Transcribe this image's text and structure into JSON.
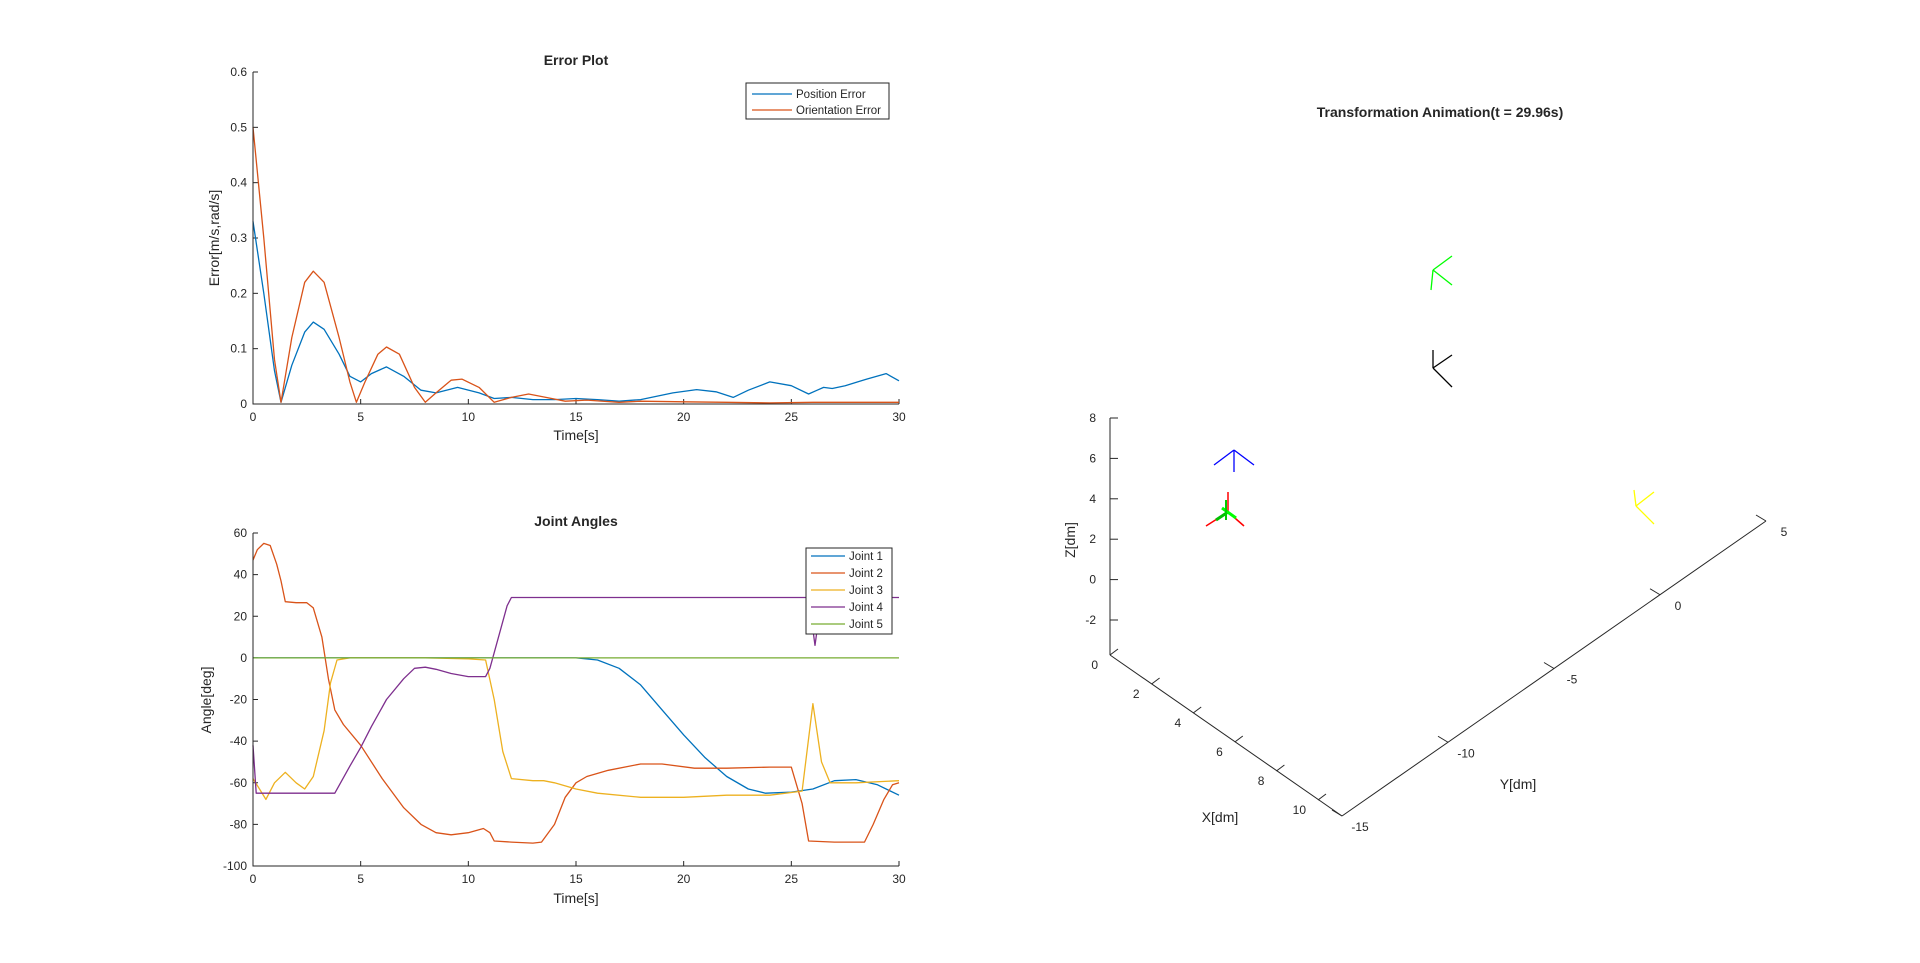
{
  "chart_data": [
    {
      "type": "line",
      "title": "Error Plot",
      "xlabel": "Time[s]",
      "ylabel": "Error[m/s,rad/s]",
      "xlim": [
        0,
        30
      ],
      "ylim": [
        0,
        0.6
      ],
      "xticks": [
        "0",
        "5",
        "10",
        "15",
        "20",
        "25",
        "30"
      ],
      "yticks": [
        "0",
        "0.1",
        "0.2",
        "0.3",
        "0.4",
        "0.5",
        "0.6"
      ],
      "legend_position": "top-right",
      "series": [
        {
          "name": "Position Error",
          "color": "#0072bd",
          "points": [
            [
              0,
              0.33
            ],
            [
              0.5,
              0.2
            ],
            [
              1,
              0.06
            ],
            [
              1.3,
              0.003
            ],
            [
              1.8,
              0.07
            ],
            [
              2.4,
              0.13
            ],
            [
              2.8,
              0.148
            ],
            [
              3.3,
              0.135
            ],
            [
              4,
              0.09
            ],
            [
              4.5,
              0.05
            ],
            [
              5,
              0.04
            ],
            [
              5.5,
              0.055
            ],
            [
              6.2,
              0.067
            ],
            [
              7,
              0.05
            ],
            [
              7.8,
              0.025
            ],
            [
              8.5,
              0.02
            ],
            [
              9.5,
              0.03
            ],
            [
              10.5,
              0.02
            ],
            [
              11.2,
              0.01
            ],
            [
              12,
              0.012
            ],
            [
              13,
              0.008
            ],
            [
              14,
              0.008
            ],
            [
              15,
              0.01
            ],
            [
              16,
              0.008
            ],
            [
              17,
              0.005
            ],
            [
              18,
              0.008
            ],
            [
              19.5,
              0.02
            ],
            [
              20.6,
              0.026
            ],
            [
              21.5,
              0.022
            ],
            [
              22.3,
              0.012
            ],
            [
              23,
              0.025
            ],
            [
              24,
              0.04
            ],
            [
              25,
              0.033
            ],
            [
              25.8,
              0.018
            ],
            [
              26.2,
              0.025
            ],
            [
              26.5,
              0.03
            ],
            [
              26.9,
              0.028
            ],
            [
              27.5,
              0.033
            ],
            [
              28.5,
              0.045
            ],
            [
              29.4,
              0.055
            ],
            [
              30,
              0.042
            ]
          ]
        },
        {
          "name": "Orientation Error",
          "color": "#d95319",
          "points": [
            [
              0,
              0.5
            ],
            [
              0.5,
              0.3
            ],
            [
              1,
              0.08
            ],
            [
              1.3,
              0.003
            ],
            [
              1.8,
              0.12
            ],
            [
              2.4,
              0.22
            ],
            [
              2.8,
              0.24
            ],
            [
              3.3,
              0.22
            ],
            [
              4,
              0.12
            ],
            [
              4.5,
              0.04
            ],
            [
              4.8,
              0.003
            ],
            [
              5.2,
              0.04
            ],
            [
              5.8,
              0.09
            ],
            [
              6.2,
              0.103
            ],
            [
              6.8,
              0.09
            ],
            [
              7.5,
              0.03
            ],
            [
              8,
              0.003
            ],
            [
              8.5,
              0.02
            ],
            [
              9.2,
              0.043
            ],
            [
              9.7,
              0.045
            ],
            [
              10.5,
              0.03
            ],
            [
              11.2,
              0.003
            ],
            [
              12,
              0.012
            ],
            [
              12.8,
              0.018
            ],
            [
              13.6,
              0.012
            ],
            [
              14.5,
              0.005
            ],
            [
              15.5,
              0.007
            ],
            [
              17,
              0.003
            ],
            [
              18,
              0.005
            ],
            [
              20,
              0.004
            ],
            [
              22,
              0.003
            ],
            [
              24,
              0.002
            ],
            [
              26,
              0.003
            ],
            [
              28,
              0.003
            ],
            [
              30,
              0.003
            ]
          ]
        }
      ]
    },
    {
      "type": "line",
      "title": "Joint Angles",
      "xlabel": "Time[s]",
      "ylabel": "Angle[deg]",
      "xlim": [
        0,
        30
      ],
      "ylim": [
        -100,
        60
      ],
      "xticks": [
        "0",
        "5",
        "10",
        "15",
        "20",
        "25",
        "30"
      ],
      "yticks": [
        "-100",
        "-80",
        "-60",
        "-40",
        "-20",
        "0",
        "20",
        "40",
        "60"
      ],
      "legend_position": "top-right",
      "series": [
        {
          "name": "Joint 1",
          "color": "#0072bd",
          "points": [
            [
              0,
              0
            ],
            [
              15,
              0
            ],
            [
              16,
              -1
            ],
            [
              17,
              -5
            ],
            [
              18,
              -13
            ],
            [
              19,
              -25
            ],
            [
              20,
              -37
            ],
            [
              21,
              -48
            ],
            [
              22,
              -57
            ],
            [
              23,
              -63
            ],
            [
              23.8,
              -65
            ],
            [
              25,
              -64.5
            ],
            [
              26,
              -63
            ],
            [
              27,
              -59
            ],
            [
              28,
              -58.5
            ],
            [
              29,
              -61
            ],
            [
              30,
              -66
            ]
          ]
        },
        {
          "name": "Joint 2",
          "color": "#d95319",
          "points": [
            [
              0,
              47
            ],
            [
              0.2,
              52
            ],
            [
              0.5,
              55
            ],
            [
              0.8,
              54
            ],
            [
              1.1,
              45
            ],
            [
              1.3,
              37
            ],
            [
              1.5,
              27
            ],
            [
              2,
              26.5
            ],
            [
              2.5,
              26.5
            ],
            [
              2.8,
              24
            ],
            [
              3.2,
              10
            ],
            [
              3.5,
              -10
            ],
            [
              3.8,
              -25
            ],
            [
              4.2,
              -32
            ],
            [
              5,
              -42
            ],
            [
              6,
              -58
            ],
            [
              7,
              -72
            ],
            [
              7.8,
              -80
            ],
            [
              8.5,
              -84
            ],
            [
              9.2,
              -85
            ],
            [
              10,
              -84
            ],
            [
              10.7,
              -82
            ],
            [
              11,
              -84
            ],
            [
              11.2,
              -88
            ],
            [
              12,
              -88.5
            ],
            [
              13,
              -89
            ],
            [
              13.4,
              -88.5
            ],
            [
              14,
              -80
            ],
            [
              14.5,
              -67
            ],
            [
              15,
              -60
            ],
            [
              15.5,
              -57
            ],
            [
              16.5,
              -54
            ],
            [
              18,
              -51
            ],
            [
              19,
              -51
            ],
            [
              20.5,
              -53
            ],
            [
              22,
              -53
            ],
            [
              24,
              -52.5
            ],
            [
              25,
              -52.5
            ],
            [
              25.5,
              -70
            ],
            [
              25.8,
              -88
            ],
            [
              27,
              -88.5
            ],
            [
              28.4,
              -88.5
            ],
            [
              28.8,
              -80
            ],
            [
              29.3,
              -68
            ],
            [
              29.7,
              -61
            ],
            [
              30,
              -60
            ]
          ]
        },
        {
          "name": "Joint 3",
          "color": "#edb120",
          "points": [
            [
              0,
              -58
            ],
            [
              0.3,
              -63
            ],
            [
              0.6,
              -68
            ],
            [
              1,
              -60
            ],
            [
              1.5,
              -55
            ],
            [
              2,
              -60
            ],
            [
              2.4,
              -63
            ],
            [
              2.8,
              -57
            ],
            [
              3.3,
              -35
            ],
            [
              3.6,
              -12
            ],
            [
              3.9,
              -1
            ],
            [
              4.5,
              0
            ],
            [
              6,
              0
            ],
            [
              8,
              0
            ],
            [
              10,
              -0.5
            ],
            [
              10.8,
              -1
            ],
            [
              11.2,
              -20
            ],
            [
              11.6,
              -45
            ],
            [
              12,
              -58
            ],
            [
              13,
              -59
            ],
            [
              13.5,
              -59
            ],
            [
              14,
              -60
            ],
            [
              15,
              -63
            ],
            [
              16,
              -65
            ],
            [
              18,
              -67
            ],
            [
              20,
              -67
            ],
            [
              22,
              -66
            ],
            [
              24,
              -66
            ],
            [
              25.5,
              -64
            ],
            [
              26,
              -22
            ],
            [
              26.4,
              -50
            ],
            [
              26.8,
              -60
            ],
            [
              28,
              -60
            ],
            [
              30,
              -59
            ]
          ]
        },
        {
          "name": "Joint 4",
          "color": "#7e2f8e",
          "points": [
            [
              0,
              -42
            ],
            [
              0.15,
              -65
            ],
            [
              1,
              -65
            ],
            [
              1.7,
              -65
            ],
            [
              2,
              -65
            ],
            [
              3.8,
              -65
            ],
            [
              4.5,
              -52
            ],
            [
              5,
              -43
            ],
            [
              5.5,
              -33
            ],
            [
              6.2,
              -20
            ],
            [
              7,
              -10
            ],
            [
              7.5,
              -5
            ],
            [
              8,
              -4.5
            ],
            [
              8.5,
              -5.5
            ],
            [
              9.2,
              -7.5
            ],
            [
              10,
              -9
            ],
            [
              10.8,
              -9
            ],
            [
              11,
              -5
            ],
            [
              11.4,
              10
            ],
            [
              11.8,
              25
            ],
            [
              12,
              29
            ],
            [
              15,
              29
            ],
            [
              20,
              29
            ],
            [
              24,
              29
            ],
            [
              25.8,
              29
            ],
            [
              26.1,
              6
            ],
            [
              26.4,
              29
            ],
            [
              30,
              29
            ]
          ]
        },
        {
          "name": "Joint 5",
          "color": "#77ac30",
          "points": [
            [
              0,
              0
            ],
            [
              30,
              0
            ]
          ]
        }
      ]
    },
    {
      "type": "line3d",
      "title": "Transformation Animation(t = 29.96s)",
      "xlabel": "X[dm]",
      "ylabel": "Y[dm]",
      "zlabel": "Z[dm]",
      "xticks": [
        "0",
        "2",
        "4",
        "6",
        "8",
        "10"
      ],
      "yticks": [
        "-15",
        "-10",
        "-5",
        "0",
        "5"
      ],
      "zticks": [
        "-2",
        "0",
        "2",
        "4",
        "6",
        "8"
      ],
      "frame_colors": [
        "#ff0000",
        "#00c000",
        "#0000ff",
        "#00ff00",
        "#000000",
        "#ffff00"
      ]
    }
  ]
}
